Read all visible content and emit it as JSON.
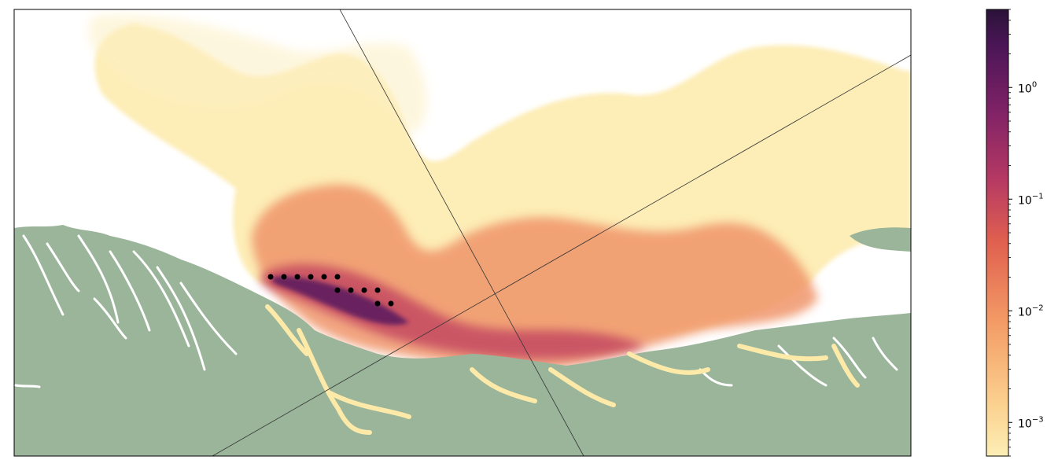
{
  "chart_data": {
    "type": "heatmap",
    "title": "",
    "xlabel": "",
    "ylabel": "",
    "colorbar": {
      "scale": "log",
      "colormap": "magma_r-like (pale yellow to dark purple)",
      "range": [
        0.0005,
        5
      ],
      "ticks": [
        {
          "value": 1,
          "label": "10",
          "exponent": "0"
        },
        {
          "value": 0.1,
          "label": "10",
          "exponent": "−1"
        },
        {
          "value": 0.01,
          "label": "10",
          "exponent": "−2"
        },
        {
          "value": 0.001,
          "label": "10",
          "exponent": "−3"
        }
      ]
    },
    "land_color": "#9ab59a",
    "release_points_count": 14,
    "reference_lines_count": 2
  }
}
